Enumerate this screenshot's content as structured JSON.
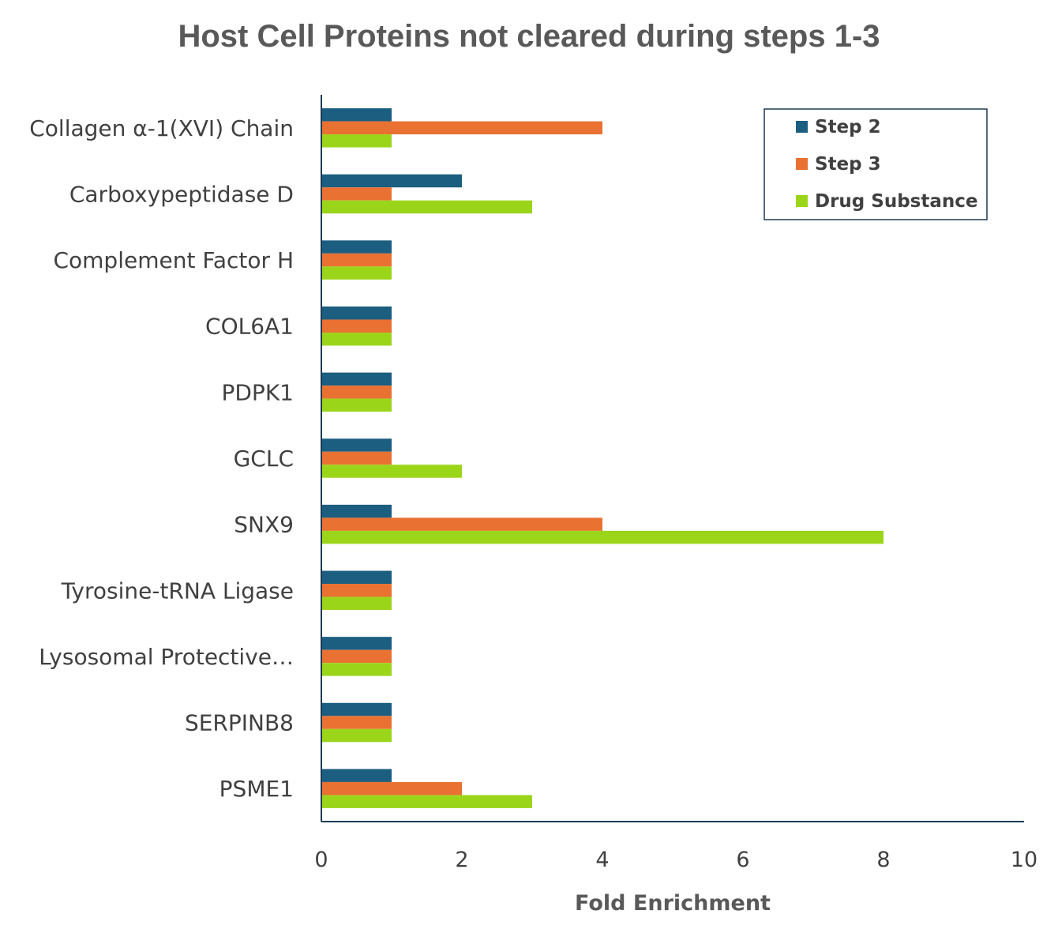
{
  "chart_data": {
    "type": "bar",
    "orientation": "horizontal",
    "title": "Host Cell Proteins not cleared during steps 1-3",
    "xlabel": "Fold Enrichment",
    "ylabel": "",
    "xlim": [
      0,
      10
    ],
    "xticks": [
      "0",
      "2",
      "4",
      "6",
      "8",
      "10"
    ],
    "grid": false,
    "legend_position": "top-right",
    "categories": [
      "Collagen α-1(XVI) Chain",
      "Carboxypeptidase D",
      "Complement Factor H",
      "COL6A1",
      "PDPK1",
      "GCLC",
      "SNX9",
      "Tyrosine-tRNA Ligase",
      "Lysosomal Protective…",
      "SERPINB8",
      "PSME1"
    ],
    "series": [
      {
        "name": "Step 2",
        "color": "#1b5e80",
        "values": [
          1,
          2,
          1,
          1,
          1,
          1,
          1,
          1,
          1,
          1,
          1
        ]
      },
      {
        "name": "Step 3",
        "color": "#e97132",
        "values": [
          4,
          1,
          1,
          1,
          1,
          1,
          4,
          1,
          1,
          1,
          2
        ]
      },
      {
        "name": "Drug Substance",
        "color": "#9bd51a",
        "values": [
          1,
          3,
          1,
          1,
          1,
          2,
          8,
          1,
          1,
          1,
          3
        ]
      }
    ]
  }
}
